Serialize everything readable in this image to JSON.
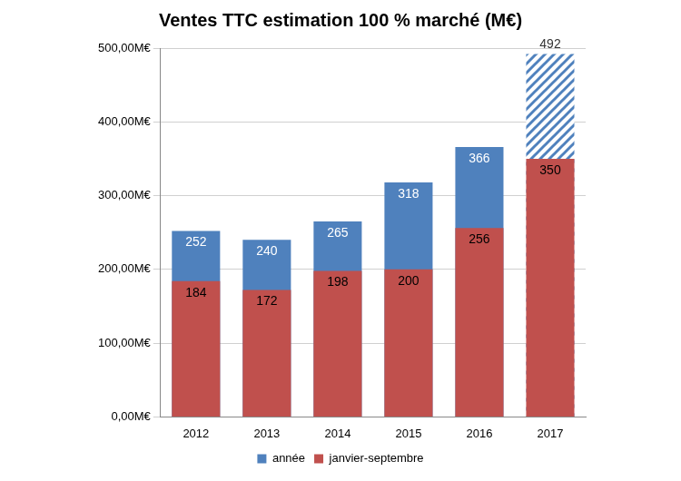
{
  "chart_data": {
    "type": "bar",
    "title": "Ventes TTC estimation 100 % marché (M€)",
    "categories": [
      "2012",
      "2013",
      "2014",
      "2015",
      "2016",
      "2017"
    ],
    "series": [
      {
        "name": "année",
        "color": "#4f81bd",
        "values": [
          252,
          240,
          265,
          318,
          366,
          492
        ]
      },
      {
        "name": "janvier-septembre",
        "color": "#c0504d",
        "values": [
          184,
          172,
          198,
          200,
          256,
          350
        ]
      }
    ],
    "stacked": false,
    "ylim": [
      0,
      500
    ],
    "yticks": [
      {
        "value": 0,
        "label": "0,00M€"
      },
      {
        "value": 100,
        "label": "100,00M€"
      },
      {
        "value": 200,
        "label": "200,00M€"
      },
      {
        "value": 300,
        "label": "300,00M€"
      },
      {
        "value": 400,
        "label": "400,00M€"
      },
      {
        "value": 500,
        "label": "500,00M€"
      }
    ],
    "grid": true,
    "legend": "bottom",
    "data_labels": true
  }
}
